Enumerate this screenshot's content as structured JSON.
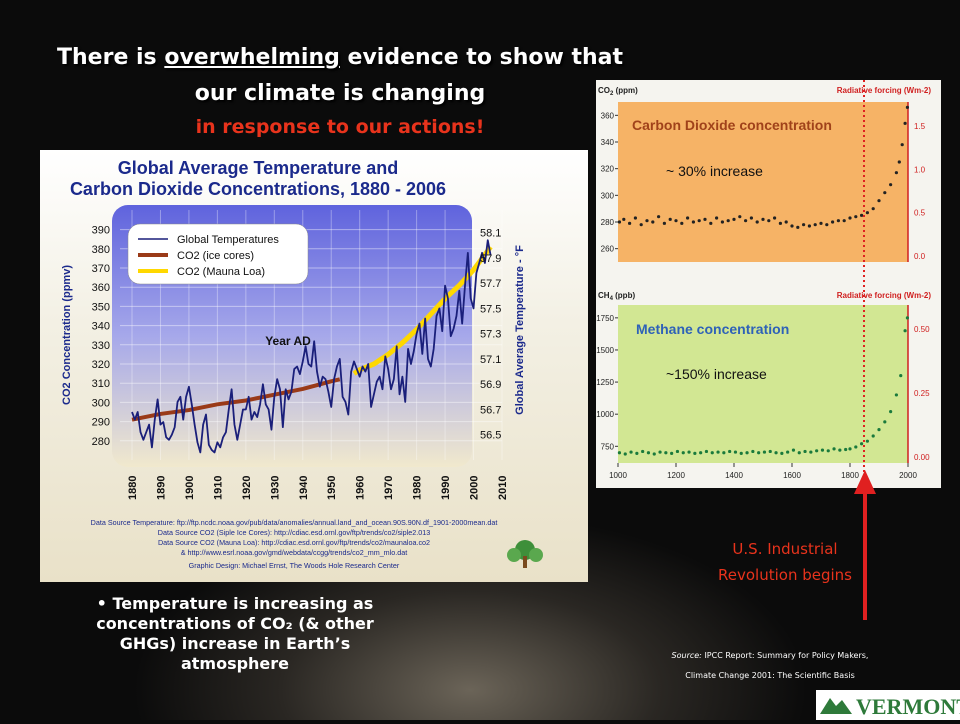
{
  "slide": {
    "title_pre": "There is ",
    "title_em": "overwhelming",
    "title_post": " evidence to show that",
    "title_line2": "our climate is changing",
    "subtitle": "in response to our actions!",
    "bullet": "• Temperature is increasing as concentrations of CO₂ (& other GHGs) increase in Earth’s atmosphere",
    "revolution_label_1": "U.S. Industrial",
    "revolution_label_2": "Revolution begins",
    "source_label": "Source:",
    "source_line1": "IPCC Report: Summary for Policy Makers,",
    "source_line2": "Climate Change 2001: The Scientific Basis",
    "logo_text": "VERMONT"
  },
  "chart_data": [
    {
      "type": "line",
      "title": "Global Average Temperature and Carbon Dioxide Concentrations, 1880 - 2006",
      "title_line1": "Global Average Temperature and",
      "title_line2": "Carbon Dioxide Concentrations, 1880 - 2006",
      "xlabel": "Year AD",
      "ylabel": "CO2 Concentration (ppmv)",
      "y2label": "Global Average Temperature - °F",
      "xlim": [
        1880,
        2010
      ],
      "ylim": [
        270,
        395
      ],
      "y2lim": [
        56.3,
        58.2
      ],
      "x_ticks": [
        "1880",
        "1890",
        "1900",
        "1910",
        "1920",
        "1930",
        "1940",
        "1950",
        "1960",
        "1970",
        "1980",
        "1990",
        "2000",
        "2010"
      ],
      "y_ticks": [
        280,
        290,
        300,
        310,
        320,
        330,
        340,
        350,
        360,
        370,
        380,
        390
      ],
      "y2_ticks": [
        "56.5",
        "56.7",
        "56.9",
        "57.1",
        "57.3",
        "57.5",
        "57.7",
        "57.9",
        "58.1"
      ],
      "legend": [
        "Global Temperatures",
        "CO2 (ice cores)",
        "CO2 (Mauna Loa)"
      ],
      "colors": {
        "temp": "#1a1f7a",
        "ice": "#9a3a18",
        "mauna": "#ffd800",
        "plot_top": "#6b6fe0",
        "plot_bottom": "#ede4c8"
      },
      "series": [
        {
          "name": "Global Temperatures",
          "axis": "y2",
          "years": [
            1880,
            1881,
            1882,
            1883,
            1884,
            1885,
            1886,
            1887,
            1888,
            1889,
            1890,
            1891,
            1892,
            1893,
            1894,
            1895,
            1896,
            1897,
            1898,
            1899,
            1900,
            1901,
            1902,
            1903,
            1904,
            1905,
            1906,
            1907,
            1908,
            1909,
            1910,
            1911,
            1912,
            1913,
            1914,
            1915,
            1916,
            1917,
            1918,
            1919,
            1920,
            1921,
            1922,
            1923,
            1924,
            1925,
            1926,
            1927,
            1928,
            1929,
            1930,
            1931,
            1932,
            1933,
            1934,
            1935,
            1936,
            1937,
            1938,
            1939,
            1940,
            1941,
            1942,
            1943,
            1944,
            1945,
            1946,
            1947,
            1948,
            1949,
            1950,
            1951,
            1952,
            1953,
            1954,
            1955,
            1956,
            1957,
            1958,
            1959,
            1960,
            1961,
            1962,
            1963,
            1964,
            1965,
            1966,
            1967,
            1968,
            1969,
            1970,
            1971,
            1972,
            1973,
            1974,
            1975,
            1976,
            1977,
            1978,
            1979,
            1980,
            1981,
            1982,
            1983,
            1984,
            1985,
            1986,
            1987,
            1988,
            1989,
            1990,
            1991,
            1992,
            1993,
            1994,
            1995,
            1996,
            1997,
            1998,
            1999,
            2000,
            2001,
            2002,
            2003,
            2004,
            2005,
            2006
          ],
          "values": [
            56.68,
            56.62,
            56.68,
            56.52,
            56.46,
            56.52,
            56.58,
            56.4,
            56.62,
            56.78,
            56.58,
            56.6,
            56.48,
            56.46,
            56.5,
            56.56,
            56.76,
            56.8,
            56.62,
            56.8,
            56.88,
            56.74,
            56.58,
            56.44,
            56.36,
            56.58,
            56.66,
            56.42,
            56.38,
            56.36,
            56.44,
            56.4,
            56.48,
            56.52,
            56.7,
            56.86,
            56.58,
            56.46,
            56.58,
            56.7,
            56.7,
            56.8,
            56.62,
            56.68,
            56.64,
            56.74,
            56.9,
            56.74,
            56.7,
            56.54,
            56.8,
            56.94,
            56.86,
            56.56,
            56.86,
            56.78,
            56.84,
            57.02,
            57.04,
            56.98,
            57.08,
            57.2,
            57.06,
            57.04,
            57.24,
            57.0,
            56.88,
            56.96,
            56.94,
            56.84,
            56.72,
            56.94,
            57.04,
            57.1,
            56.8,
            56.76,
            56.66,
            57.0,
            57.08,
            57.02,
            56.96,
            57.04,
            57.0,
            57.06,
            56.72,
            56.82,
            56.92,
            56.96,
            56.86,
            57.12,
            57.02,
            56.86,
            56.94,
            57.2,
            56.82,
            56.96,
            56.76,
            57.18,
            57.06,
            57.16,
            57.3,
            57.38,
            57.14,
            57.42,
            57.1,
            57.04,
            57.18,
            57.44,
            57.5,
            57.32,
            57.68,
            57.58,
            57.28,
            57.34,
            57.44,
            57.64,
            57.38,
            57.68,
            57.94,
            57.58,
            57.5,
            57.78,
            57.86,
            57.94,
            57.86,
            58.04,
            57.92
          ]
        },
        {
          "name": "CO2 (ice cores)",
          "axis": "y",
          "years": [
            1880,
            1890,
            1900,
            1910,
            1920,
            1930,
            1940,
            1950,
            1953
          ],
          "values": [
            291,
            294,
            296,
            299,
            301,
            304,
            307,
            311,
            312
          ]
        },
        {
          "name": "CO2 (Mauna Loa)",
          "axis": "y",
          "years": [
            1958,
            1960,
            1965,
            1970,
            1975,
            1980,
            1985,
            1990,
            1995,
            2000,
            2005,
            2006
          ],
          "values": [
            315,
            317,
            320,
            325,
            331,
            338,
            346,
            354,
            361,
            369,
            379,
            381
          ]
        }
      ],
      "credits": [
        "Data Source Temperature: ftp://ftp.ncdc.noaa.gov/pub/data/anomalies/annual.land_and_ocean.90S.90N.df_1901-2000mean.dat",
        "Data Source CO2 (Siple Ice Cores): http://cdiac.esd.ornl.gov/ftp/trends/co2/siple2.013",
        "Data Source CO2 (Mauna Loa): http://cdiac.esd.ornl.gov/ftp/trends/co2/maunaloa.co2",
        "& http://www.esrl.noaa.gov/gmd/webdata/ccgg/trends/co2_mm_mlo.dat",
        "Graphic Design: Michael Ernst, The Woods Hole Research Center"
      ]
    },
    {
      "type": "scatter",
      "title": "Carbon Dioxide concentration",
      "ylabel": "CO2 (ppm)",
      "y2label": "Radiative forcing (Wm-2)",
      "xlim": [
        1000,
        2000
      ],
      "ylim": [
        250,
        370
      ],
      "y_ticks": [
        260,
        280,
        300,
        320,
        340,
        360
      ],
      "y2_ticks": [
        "0.0",
        "0.5",
        "1.0",
        "1.5"
      ],
      "annotation": "~ 30% increase",
      "colors": {
        "bg": "#f6b366",
        "points": "#222222",
        "axis2": "#d02020"
      },
      "x": [
        1005,
        1020,
        1040,
        1060,
        1080,
        1100,
        1120,
        1140,
        1160,
        1180,
        1200,
        1220,
        1240,
        1260,
        1280,
        1300,
        1320,
        1340,
        1360,
        1380,
        1400,
        1420,
        1440,
        1460,
        1480,
        1500,
        1520,
        1540,
        1560,
        1580,
        1600,
        1620,
        1640,
        1660,
        1680,
        1700,
        1720,
        1740,
        1760,
        1780,
        1800,
        1820,
        1840,
        1860,
        1880,
        1900,
        1920,
        1940,
        1960,
        1970,
        1980,
        1990,
        1998
      ],
      "y": [
        280,
        282,
        279,
        283,
        278,
        281,
        280,
        284,
        279,
        282,
        281,
        279,
        283,
        280,
        281,
        282,
        279,
        283,
        280,
        281,
        282,
        284,
        281,
        283,
        280,
        282,
        281,
        283,
        279,
        280,
        277,
        276,
        278,
        277,
        278,
        279,
        278,
        280,
        281,
        281,
        283,
        284,
        285,
        287,
        290,
        296,
        302,
        308,
        317,
        325,
        338,
        354,
        366
      ]
    },
    {
      "type": "scatter",
      "title": "Methane concentration",
      "ylabel": "CH4 (ppb)",
      "y2label": "Radiative forcing (Wm-2)",
      "xlim": [
        1000,
        2000
      ],
      "ylim": [
        620,
        1850
      ],
      "y_ticks": [
        750,
        1000,
        1250,
        1500,
        1750
      ],
      "y2_ticks": [
        "0.00",
        "0.25",
        "0.50"
      ],
      "x_ticks": [
        "1000",
        "1200",
        "1400",
        "1600",
        "1800",
        "2000"
      ],
      "annotation": "~150% increase",
      "colors": {
        "bg": "#cfe58d",
        "points": "#1a7a3c",
        "axis2": "#d02020"
      },
      "x": [
        1005,
        1025,
        1045,
        1065,
        1085,
        1105,
        1125,
        1145,
        1165,
        1185,
        1205,
        1225,
        1245,
        1265,
        1285,
        1305,
        1325,
        1345,
        1365,
        1385,
        1405,
        1425,
        1445,
        1465,
        1485,
        1505,
        1525,
        1545,
        1565,
        1585,
        1605,
        1625,
        1645,
        1665,
        1685,
        1705,
        1725,
        1745,
        1765,
        1785,
        1800,
        1820,
        1840,
        1860,
        1880,
        1900,
        1920,
        1940,
        1960,
        1975,
        1990,
        1998
      ],
      "y": [
        700,
        690,
        705,
        695,
        710,
        700,
        690,
        705,
        700,
        695,
        710,
        700,
        705,
        695,
        700,
        710,
        700,
        705,
        700,
        710,
        705,
        695,
        700,
        710,
        700,
        705,
        710,
        700,
        695,
        705,
        720,
        700,
        710,
        705,
        715,
        720,
        715,
        730,
        720,
        725,
        730,
        745,
        770,
        790,
        830,
        880,
        940,
        1020,
        1150,
        1300,
        1650,
        1750
      ]
    }
  ]
}
